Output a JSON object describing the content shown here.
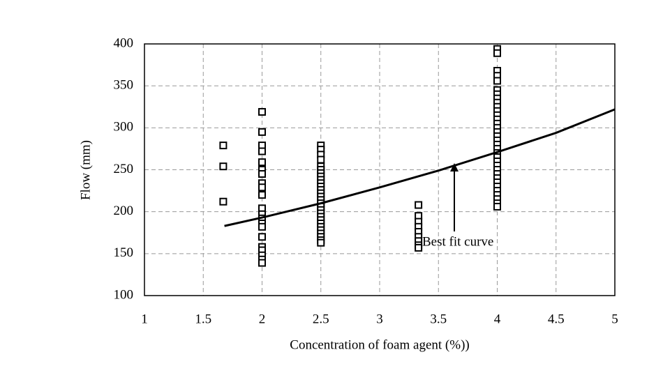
{
  "chart_data": {
    "type": "scatter",
    "xlabel": "Concentration of foam agent (%))",
    "ylabel": "Flow   (mm)",
    "annotation": "Best fit curve",
    "xlim": [
      1,
      5
    ],
    "xticks": [
      1,
      1.5,
      2,
      2.5,
      3,
      3.5,
      4,
      4.5,
      5
    ],
    "ylim": [
      100,
      400
    ],
    "yticks": [
      100,
      150,
      200,
      250,
      300,
      350,
      400
    ],
    "grid": true,
    "series": [
      {
        "type": "scatter",
        "color": "#000000",
        "x": [
          1.67,
          1.67,
          1.67,
          2,
          2,
          2,
          2,
          2,
          2,
          2,
          2,
          2,
          2,
          2,
          2,
          2,
          2,
          2,
          2,
          2,
          2,
          2,
          2,
          2,
          2.5,
          2.5,
          2.5,
          2.5,
          2.5,
          2.5,
          2.5,
          2.5,
          2.5,
          2.5,
          2.5,
          2.5,
          2.5,
          2.5,
          2.5,
          2.5,
          2.5,
          2.5,
          2.5,
          2.5,
          2.5,
          2.5,
          2.5,
          2.5,
          2.5,
          2.5,
          2.5,
          2.5,
          3.33,
          3.33,
          3.33,
          3.33,
          3.33,
          3.33,
          3.33,
          3.33,
          3.33,
          4,
          4,
          4,
          4,
          4,
          4,
          4,
          4,
          4,
          4,
          4,
          4,
          4,
          4,
          4,
          4,
          4,
          4,
          4,
          4,
          4,
          4,
          4,
          4,
          4,
          4,
          4,
          4,
          4,
          4,
          4,
          4,
          4,
          4
        ],
        "values": [
          279,
          254,
          212,
          319,
          295,
          279,
          272,
          259,
          250,
          245,
          234,
          229,
          220,
          204,
          197,
          192,
          186,
          182,
          170,
          158,
          154,
          148,
          143,
          139,
          279,
          274,
          268,
          262,
          254,
          250,
          246,
          242,
          238,
          234,
          230,
          226,
          222,
          218,
          214,
          210,
          206,
          202,
          198,
          194,
          190,
          186,
          182,
          178,
          174,
          170,
          166,
          163,
          208,
          195,
          188,
          182,
          176,
          170,
          165,
          160,
          157,
          394,
          389,
          368,
          362,
          356,
          345,
          340,
          335,
          330,
          325,
          320,
          315,
          310,
          305,
          300,
          295,
          290,
          285,
          280,
          275,
          270,
          265,
          260,
          255,
          250,
          245,
          240,
          235,
          230,
          225,
          220,
          215,
          210,
          206
        ]
      },
      {
        "type": "line",
        "color": "#000000",
        "x": [
          1.68,
          2,
          2.5,
          3,
          3.5,
          4,
          4.5,
          5
        ],
        "values": [
          183,
          193,
          210,
          229,
          249,
          271,
          294,
          322
        ]
      }
    ]
  }
}
